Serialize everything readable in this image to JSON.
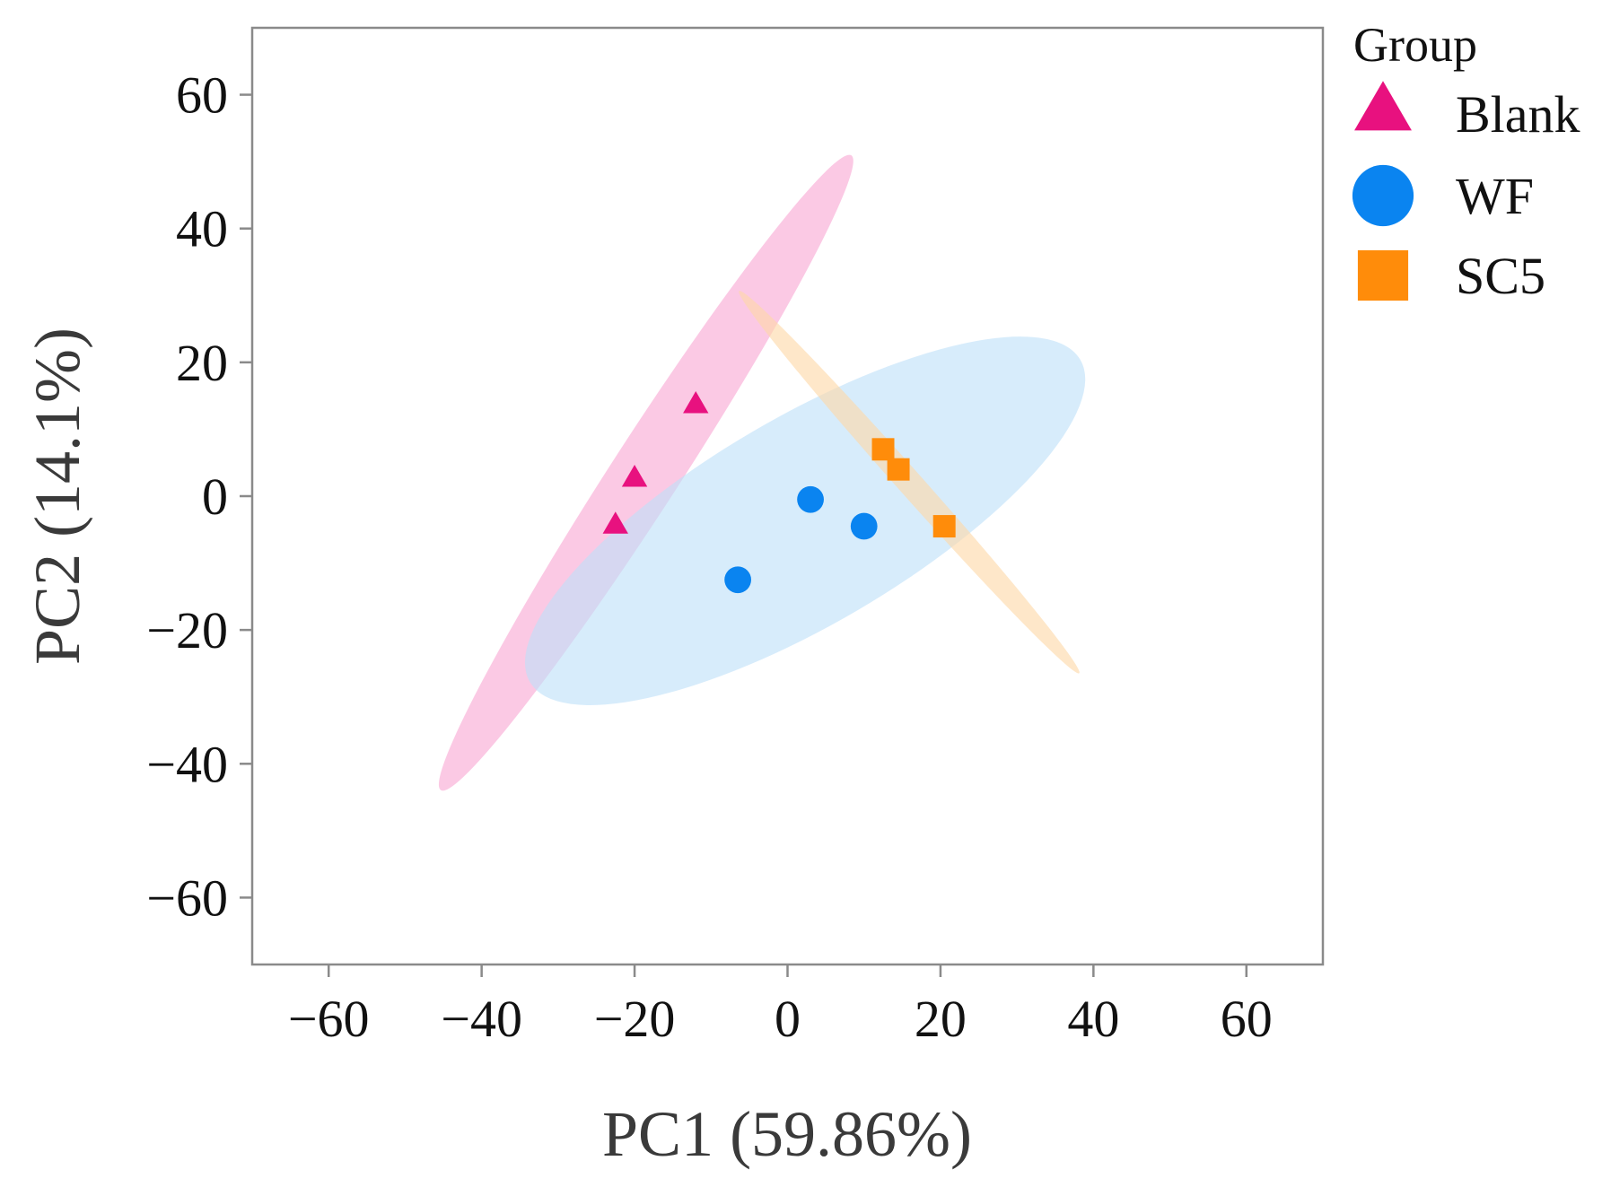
{
  "chart_data": {
    "type": "scatter",
    "title": "",
    "xlabel": "PC1 (59.86%)",
    "ylabel": "PC2 (14.1%)",
    "xlim": [
      -70,
      70
    ],
    "ylim": [
      -70,
      70
    ],
    "xticks": [
      -60,
      -40,
      -20,
      0,
      20,
      40,
      60
    ],
    "yticks": [
      60,
      40,
      20,
      0,
      -20,
      -40,
      -60
    ],
    "xtick_labels": [
      "−60",
      "−40",
      "−20",
      "0",
      "20",
      "40",
      "60"
    ],
    "ytick_labels": [
      "60",
      "40",
      "20",
      "0",
      "−20",
      "−40",
      "−60"
    ],
    "grid": false,
    "legend": {
      "title": "Group",
      "position": "right-top"
    },
    "series": [
      {
        "name": "Blank",
        "marker": "triangle",
        "color": "#E8117F",
        "ellipse_color": "#F9A8D4",
        "points": [
          [
            -12,
            13.5
          ],
          [
            -20,
            2.5
          ],
          [
            -22.5,
            -4.5
          ]
        ],
        "ellipse": {
          "cx": -18.5,
          "cy": 3.5,
          "semi_major": 54.5,
          "semi_minor": 4.6,
          "angle_deg": 60.5
        }
      },
      {
        "name": "WF",
        "marker": "circle",
        "color": "#0A84F0",
        "ellipse_color": "#BEE1F8",
        "points": [
          [
            3,
            -0.5
          ],
          [
            10,
            -4.5
          ],
          [
            -6.5,
            -12.5
          ]
        ],
        "ellipse": {
          "cx": 2.3,
          "cy": -3.7,
          "semi_major": 43.3,
          "semi_minor": 14.8,
          "angle_deg": 33.8
        }
      },
      {
        "name": "SC5",
        "marker": "square",
        "color": "#FF8C0A",
        "ellipse_color": "#FDD9A8",
        "points": [
          [
            12.5,
            7
          ],
          [
            14.5,
            4
          ],
          [
            20.5,
            -4.5
          ]
        ],
        "ellipse": {
          "cx": 15.9,
          "cy": 2.1,
          "semi_major": 36.2,
          "semi_minor": 1.7,
          "angle_deg": -52.1
        }
      }
    ]
  }
}
